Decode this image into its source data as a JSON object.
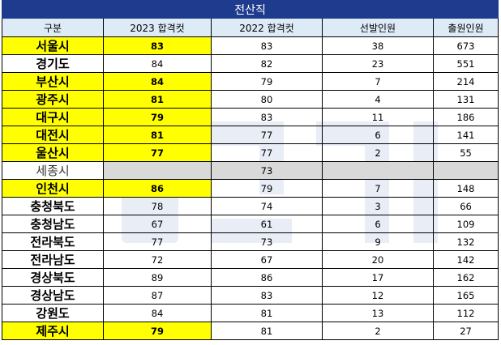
{
  "table": {
    "title": "전산직",
    "headers": [
      "구분",
      "2023 합격컷",
      "2022 합격컷",
      "선발인원",
      "출원인원"
    ],
    "rows": [
      {
        "region": "서울시",
        "cut2023": "83",
        "cut2022": "83",
        "selected": "38",
        "applicants": "673",
        "highlight": true
      },
      {
        "region": "경기도",
        "cut2023": "84",
        "cut2022": "82",
        "selected": "23",
        "applicants": "551",
        "highlight": false
      },
      {
        "region": "부산시",
        "cut2023": "84",
        "cut2022": "79",
        "selected": "7",
        "applicants": "214",
        "highlight": true
      },
      {
        "region": "광주시",
        "cut2023": "81",
        "cut2022": "80",
        "selected": "4",
        "applicants": "131",
        "highlight": true
      },
      {
        "region": "대구시",
        "cut2023": "79",
        "cut2022": "83",
        "selected": "11",
        "applicants": "186",
        "highlight": true
      },
      {
        "region": "대전시",
        "cut2023": "81",
        "cut2022": "77",
        "selected": "6",
        "applicants": "141",
        "highlight": true
      },
      {
        "region": "울산시",
        "cut2023": "77",
        "cut2022": "77",
        "selected": "2",
        "applicants": "55",
        "highlight": true
      },
      {
        "region": "세종시",
        "cut2023": "",
        "cut2022": "73",
        "selected": "",
        "applicants": "",
        "highlight": false
      },
      {
        "region": "인천시",
        "cut2023": "86",
        "cut2022": "79",
        "selected": "7",
        "applicants": "148",
        "highlight": true
      },
      {
        "region": "충청북도",
        "cut2023": "78",
        "cut2022": "74",
        "selected": "3",
        "applicants": "66",
        "highlight": false
      },
      {
        "region": "충청남도",
        "cut2023": "67",
        "cut2022": "61",
        "selected": "6",
        "applicants": "109",
        "highlight": false
      },
      {
        "region": "전라북도",
        "cut2023": "77",
        "cut2022": "73",
        "selected": "9",
        "applicants": "132",
        "highlight": false
      },
      {
        "region": "전라남도",
        "cut2023": "72",
        "cut2022": "67",
        "selected": "20",
        "applicants": "142",
        "highlight": false
      },
      {
        "region": "경상북도",
        "cut2023": "89",
        "cut2022": "86",
        "selected": "17",
        "applicants": "162",
        "highlight": false
      },
      {
        "region": "경상남도",
        "cut2023": "87",
        "cut2022": "83",
        "selected": "12",
        "applicants": "165",
        "highlight": false
      },
      {
        "region": "강원도",
        "cut2023": "84",
        "cut2022": "81",
        "selected": "13",
        "applicants": "112",
        "highlight": false
      },
      {
        "region": "제주시",
        "cut2023": "79",
        "cut2022": "81",
        "selected": "2",
        "applicants": "27",
        "highlight": true
      }
    ]
  },
  "colors": {
    "title_bg": "#1f3b8e",
    "header_bg": "#ddebf7",
    "highlight": "#ffff00",
    "merged_gray": "#d9d9d9"
  }
}
